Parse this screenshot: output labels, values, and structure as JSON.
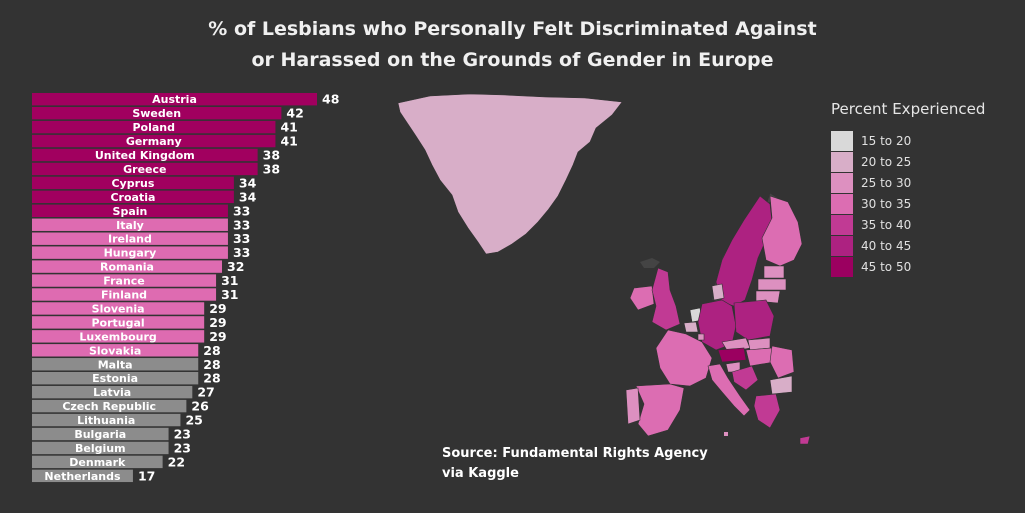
{
  "chart_data": {
    "type": "bar",
    "orientation": "horizontal",
    "title_line1": "% of Lesbians who Personally Felt Discriminated Against",
    "title_line2": "or Harassed on the Grounds of Gender in Europe",
    "categories": [
      "Austria",
      "Sweden",
      "Poland",
      "Germany",
      "United Kingdom",
      "Greece",
      "Cyprus",
      "Croatia",
      "Spain",
      "Italy",
      "Ireland",
      "Hungary",
      "Romania",
      "France",
      "Finland",
      "Slovenia",
      "Portugal",
      "Luxembourg",
      "Slovakia",
      "Malta",
      "Estonia",
      "Latvia",
      "Czech Republic",
      "Lithuania",
      "Bulgaria",
      "Belgium",
      "Denmark",
      "Netherlands"
    ],
    "values": [
      48,
      42,
      41,
      41,
      38,
      38,
      34,
      34,
      33,
      33,
      33,
      33,
      32,
      31,
      31,
      29,
      29,
      29,
      28,
      28,
      28,
      27,
      26,
      25,
      23,
      23,
      22,
      17
    ],
    "bar_colors": [
      "#a1005f",
      "#a1005f",
      "#a1005f",
      "#a1005f",
      "#a1005f",
      "#a1005f",
      "#a1005f",
      "#a1005f",
      "#a1005f",
      "#de6bb1",
      "#de6bb1",
      "#de6bb1",
      "#de6bb1",
      "#de6bb1",
      "#de6bb1",
      "#de6bb1",
      "#de6bb1",
      "#de6bb1",
      "#de6bb1",
      "#8c8c8c",
      "#8c8c8c",
      "#8c8c8c",
      "#8c8c8c",
      "#8c8c8c",
      "#8c8c8c",
      "#8c8c8c",
      "#8c8c8c",
      "#8c8c8c"
    ],
    "legend": {
      "title": "Percent Experienced",
      "items": [
        {
          "label": "15 to 20",
          "color": "#d9d9d9"
        },
        {
          "label": "20 to 25",
          "color": "#d8aec8"
        },
        {
          "label": "25 to 30",
          "color": "#dd90c0"
        },
        {
          "label": "30 to 35",
          "color": "#dc6db2"
        },
        {
          "label": "35 to 40",
          "color": "#c13a94"
        },
        {
          "label": "40 to 45",
          "color": "#ad2281"
        },
        {
          "label": "45 to 50",
          "color": "#9b0060"
        }
      ]
    },
    "source_line1": "Source: Fundamental Rights Agency",
    "source_line2": "via Kaggle"
  },
  "colors": {
    "background": "#333333",
    "greenland": "#d8aec8"
  }
}
